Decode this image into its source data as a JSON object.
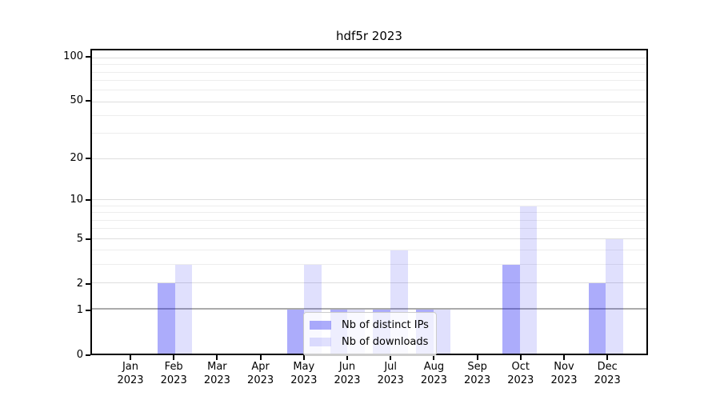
{
  "title": "hdf5r 2023",
  "chart_data": {
    "type": "bar",
    "title": "hdf5r 2023",
    "categories": [
      "Jan",
      "Feb",
      "Mar",
      "Apr",
      "May",
      "Jun",
      "Jul",
      "Aug",
      "Sep",
      "Oct",
      "Nov",
      "Dec"
    ],
    "category_year": "2023",
    "series": [
      {
        "name": "Nb of distinct IPs",
        "color": "rgba(13,13,242,0.34)",
        "values": [
          0,
          2,
          0,
          0,
          1,
          1,
          1,
          1,
          0,
          3,
          0,
          2
        ]
      },
      {
        "name": "Nb of downloads",
        "color": "rgba(13,13,242,0.13)",
        "values": [
          0,
          3,
          0,
          0,
          3,
          1,
          4,
          1,
          0,
          9,
          0,
          5
        ]
      }
    ],
    "yscale": "log1p",
    "ylim": [
      0,
      113.5
    ],
    "yticks": [
      0,
      1,
      2,
      5,
      10,
      20,
      50,
      100
    ],
    "minor_yticks": [
      3,
      4,
      6,
      7,
      8,
      9,
      30,
      40,
      60,
      70,
      80,
      90
    ],
    "emphasized_gridline_value": 1,
    "grid": true,
    "legend_position": "lower center",
    "xlabel": "",
    "ylabel": ""
  },
  "legend": {
    "items": [
      {
        "label": "Nb of distinct IPs"
      },
      {
        "label": "Nb of downloads"
      }
    ]
  },
  "colors": {
    "bar_distinct_ips": "rgba(13,13,242,0.34)",
    "bar_downloads": "rgba(13,13,242,0.13)",
    "grid_major": "#dedede",
    "grid_minor": "#ededed",
    "grid_emphasis": "#ababab",
    "axis": "#000000"
  }
}
